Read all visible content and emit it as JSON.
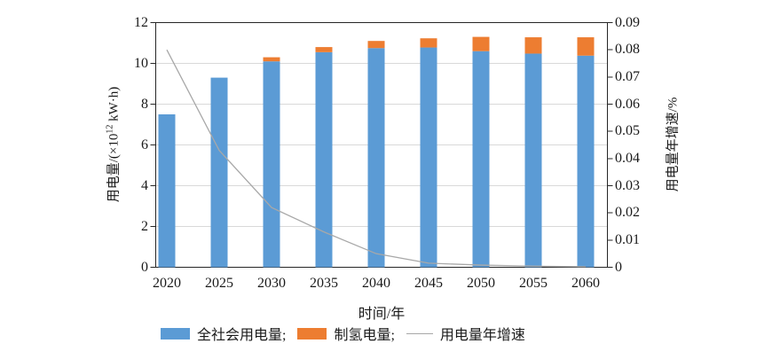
{
  "chart_data": {
    "type": "bar",
    "subtype": "stacked-bars-with-line-dual-axis",
    "categories": [
      "2020",
      "2025",
      "2030",
      "2035",
      "2040",
      "2045",
      "2050",
      "2055",
      "2060"
    ],
    "series": [
      {
        "name": "全社会用电量",
        "type": "bar",
        "stack": "total",
        "axis": "left",
        "color": "#5b9bd5",
        "values": [
          7.5,
          9.3,
          10.1,
          10.55,
          10.75,
          10.78,
          10.6,
          10.48,
          10.38
        ]
      },
      {
        "name": "制氢电量",
        "type": "bar",
        "stack": "total",
        "axis": "left",
        "color": "#ed7d31",
        "values": [
          0,
          0,
          0.2,
          0.25,
          0.35,
          0.45,
          0.7,
          0.8,
          0.9
        ]
      },
      {
        "name": "用电量年增速",
        "type": "line",
        "axis": "right",
        "color": "#a8a8a8",
        "values": [
          0.08,
          0.043,
          0.022,
          0.013,
          0.005,
          0.0015,
          0.0008,
          0.0004,
          0.0002
        ]
      }
    ],
    "xlabel": "时间/年",
    "left_axis": {
      "label_prefix": "用电量/(×10",
      "label_sup": "12",
      "label_suffix": " kW·h)",
      "min": 0,
      "max": 12,
      "step": 2,
      "ticks": [
        "0",
        "2",
        "4",
        "6",
        "8",
        "10",
        "12"
      ]
    },
    "right_axis": {
      "label": "用电量年增速/%",
      "min": 0,
      "max": 0.09,
      "step": 0.01,
      "ticks": [
        "0",
        "0.01",
        "0.02",
        "0.03",
        "0.04",
        "0.05",
        "0.06",
        "0.07",
        "0.08",
        "0.09"
      ]
    },
    "grid": true,
    "legend_position": "bottom",
    "legend": [
      {
        "label": "全社会用电量;",
        "swatch": "rect",
        "color": "#5b9bd5"
      },
      {
        "label": "制氢电量;",
        "swatch": "rect",
        "color": "#ed7d31"
      },
      {
        "label": "用电量年增速",
        "swatch": "line",
        "color": "#a8a8a8"
      }
    ],
    "colors": {
      "grid": "#d9d9d9",
      "axis": "#262626",
      "text": "#1a1a1a",
      "background": "#ffffff"
    }
  }
}
